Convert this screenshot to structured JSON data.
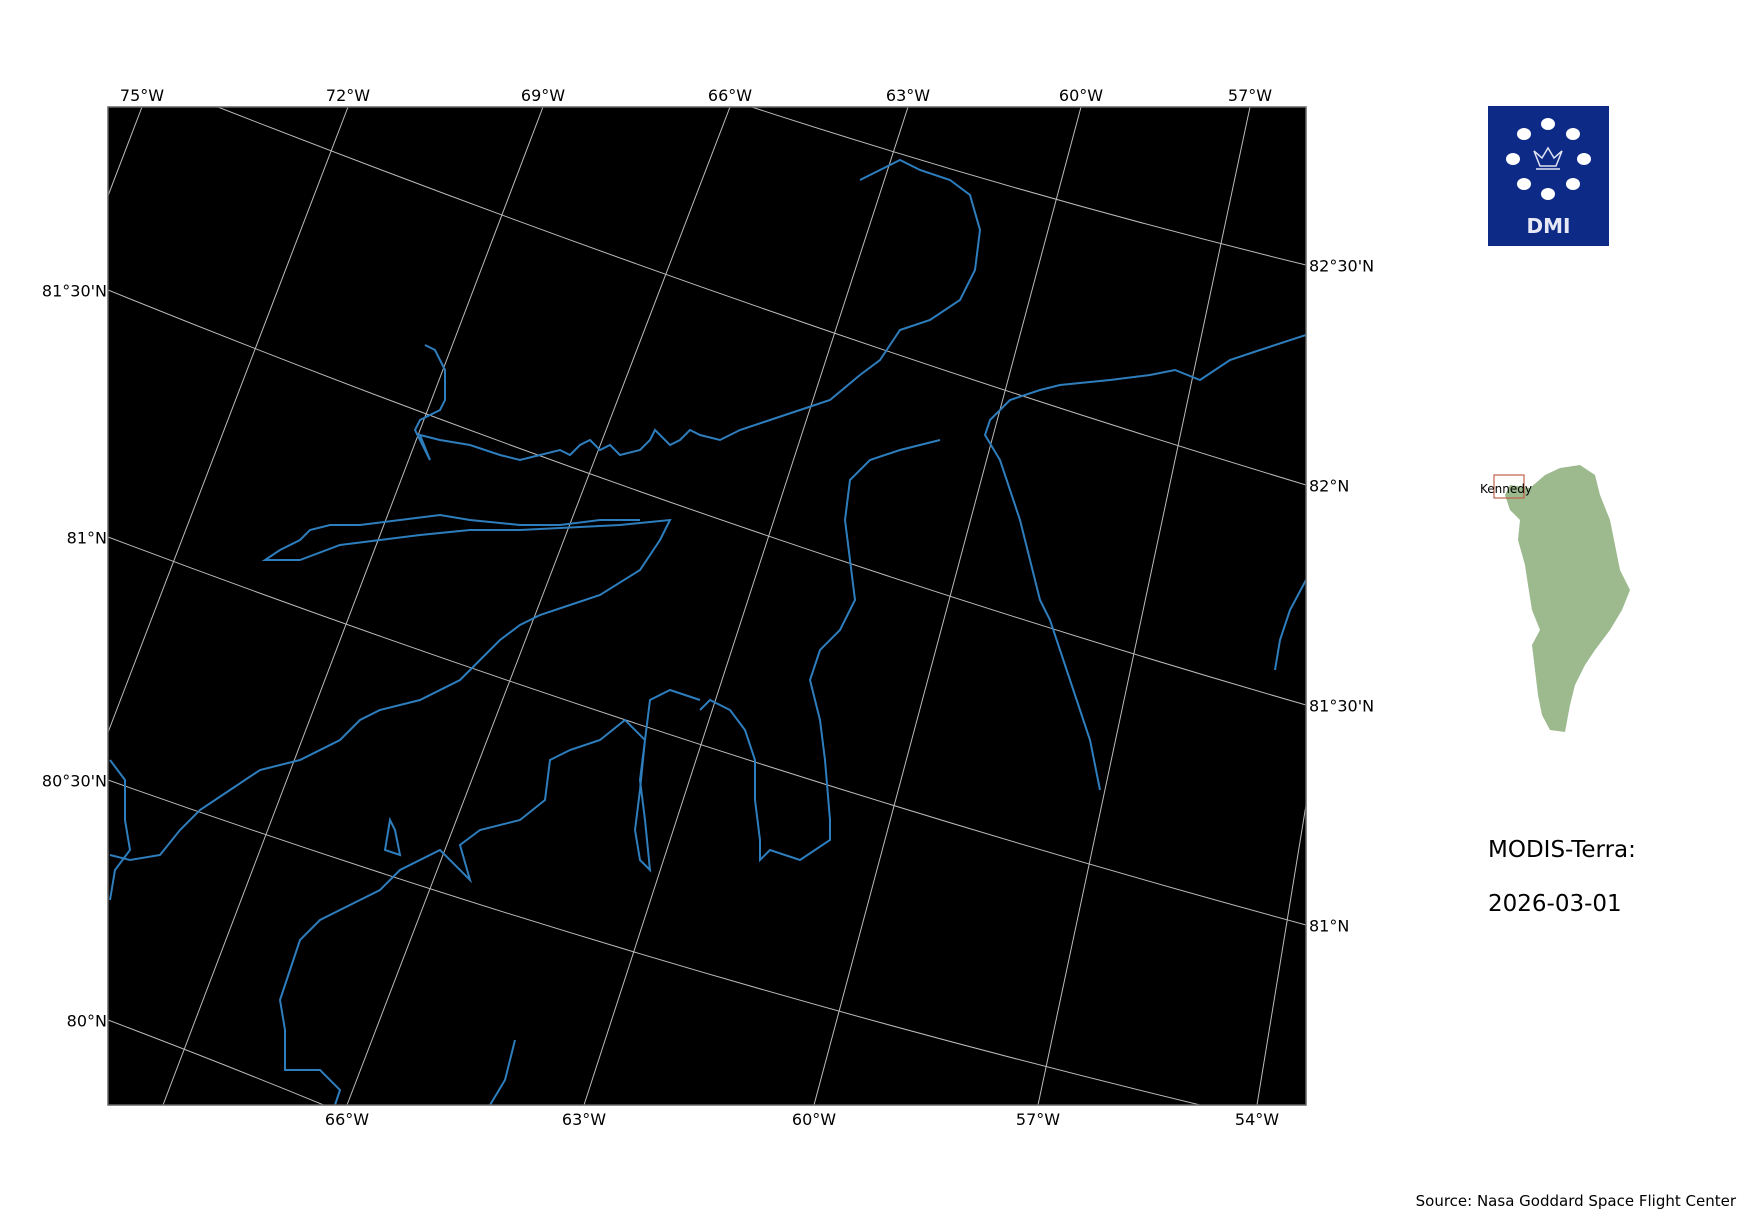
{
  "map": {
    "top_lon_labels": [
      "75°W",
      "72°W",
      "69°W",
      "66°W",
      "63°W",
      "60°W",
      "57°W"
    ],
    "bottom_lon_labels": [
      "66°W",
      "63°W",
      "60°W",
      "57°W",
      "54°W"
    ],
    "left_lat_labels": [
      "81°30'N",
      "81°N",
      "80°30'N",
      "80°N"
    ],
    "right_lat_labels": [
      "82°30'N",
      "82°N",
      "81°30'N",
      "81°N"
    ],
    "background_color": "#000000",
    "coastline_color": "#2e7dbc",
    "grid_color": "#bbbbbb"
  },
  "logo": {
    "text": "DMI",
    "color": "#0e2a87"
  },
  "inset": {
    "region_label": "Kennedy",
    "land_color": "#9dba8f",
    "box_color": "#c0604a"
  },
  "title": {
    "sensor": "MODIS-Terra:",
    "date": "2026-03-01"
  },
  "source": "Source: Nasa Goddard Space Flight Center"
}
